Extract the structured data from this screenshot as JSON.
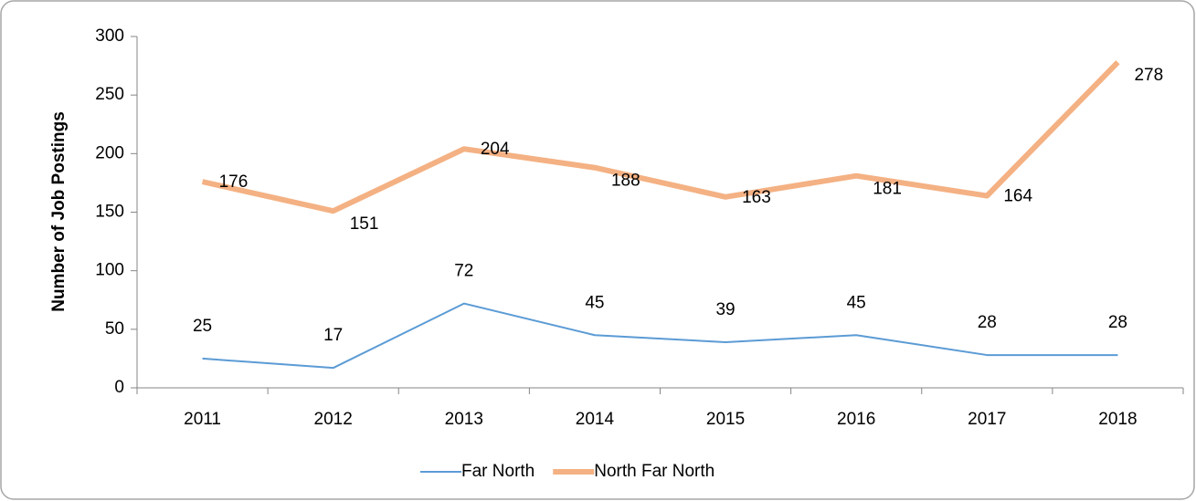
{
  "chart_data": {
    "type": "line",
    "ylabel": "Number of Job Postings",
    "categories": [
      "2011",
      "2012",
      "2013",
      "2014",
      "2015",
      "2016",
      "2017",
      "2018"
    ],
    "series": [
      {
        "name": "Far North",
        "color": "#5b9bd5",
        "values": [
          25,
          17,
          72,
          45,
          39,
          45,
          28,
          28
        ]
      },
      {
        "name": "North Far North",
        "color": "#f4b183",
        "values": [
          176,
          151,
          204,
          188,
          163,
          181,
          164,
          278
        ]
      }
    ],
    "ylim": [
      0,
      300
    ],
    "yticks": [
      0,
      50,
      100,
      150,
      200,
      250,
      300
    ],
    "grid": false,
    "legend": "bottom"
  }
}
